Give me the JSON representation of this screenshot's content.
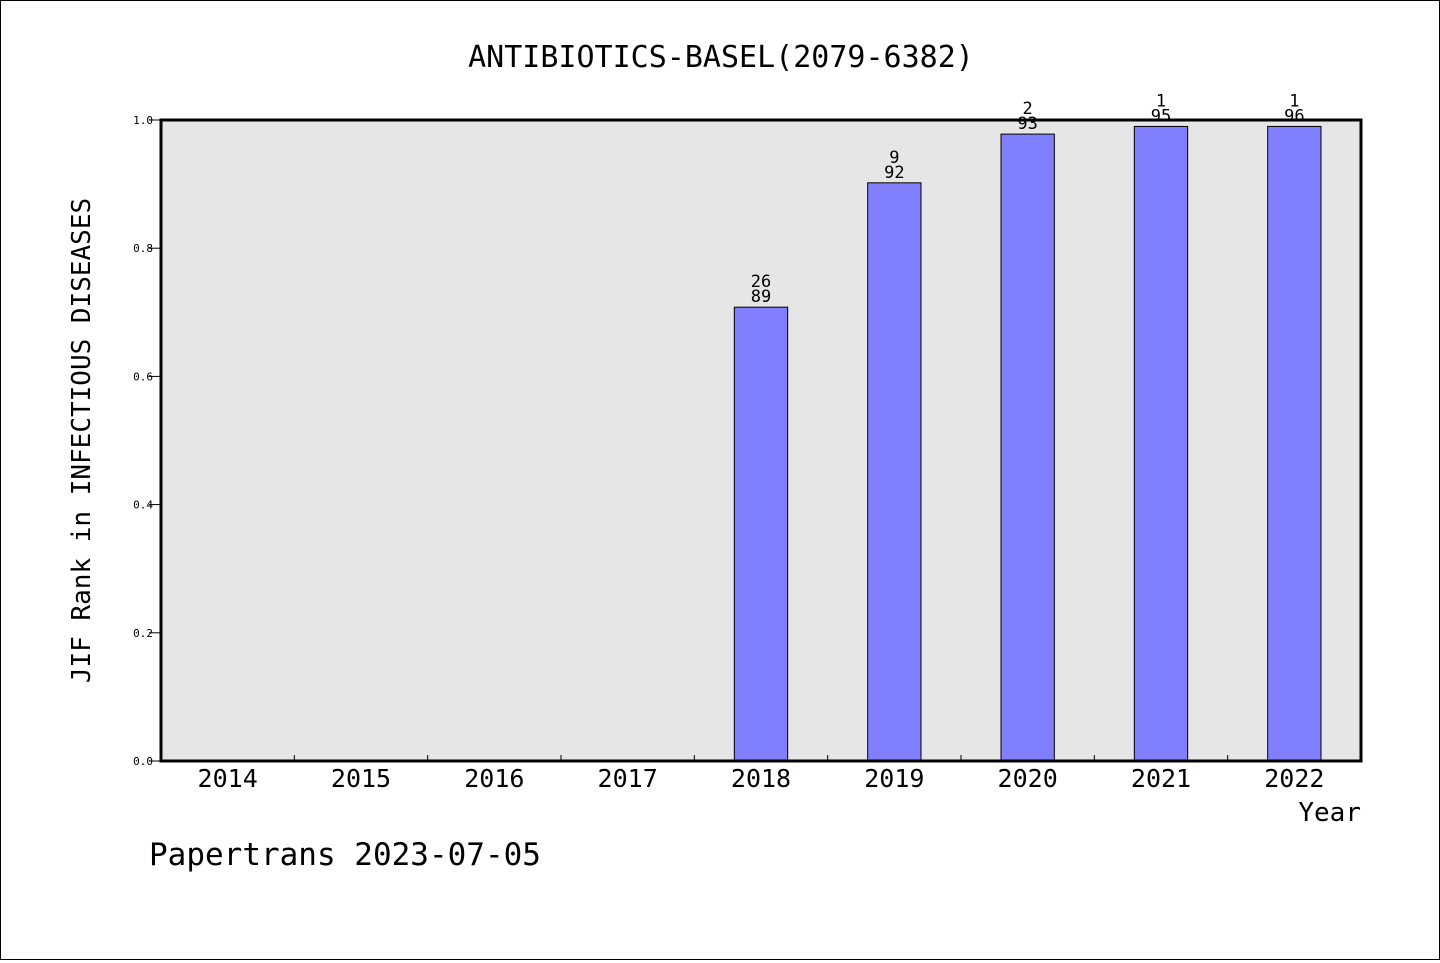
{
  "chart_data": {
    "type": "bar",
    "title": "ANTIBIOTICS-BASEL(2079-6382)",
    "xlabel": "Year",
    "ylabel": "JIF Rank in INFECTIOUS DISEASES",
    "categories": [
      "2014",
      "2015",
      "2016",
      "2017",
      "2018",
      "2019",
      "2020",
      "2021",
      "2022"
    ],
    "values": [
      null,
      null,
      null,
      null,
      0.708,
      0.902,
      0.978,
      0.99,
      0.99
    ],
    "bar_labels": [
      null,
      null,
      null,
      null,
      {
        "rank": "26",
        "total": "89"
      },
      {
        "rank": "9",
        "total": "92"
      },
      {
        "rank": "2",
        "total": "93"
      },
      {
        "rank": "1",
        "total": "95"
      },
      {
        "rank": "1",
        "total": "96"
      }
    ],
    "ylim": [
      0,
      1
    ],
    "yticks": [
      "0.0",
      "0.2",
      "0.4",
      "0.6",
      "0.8",
      "1.0"
    ],
    "grid": false,
    "legend": "none",
    "colors": {
      "bar": "#8080ff",
      "plot_bg": "#e6e6e6"
    }
  },
  "footer": {
    "watermark": "Papertrans 2023-07-05"
  }
}
